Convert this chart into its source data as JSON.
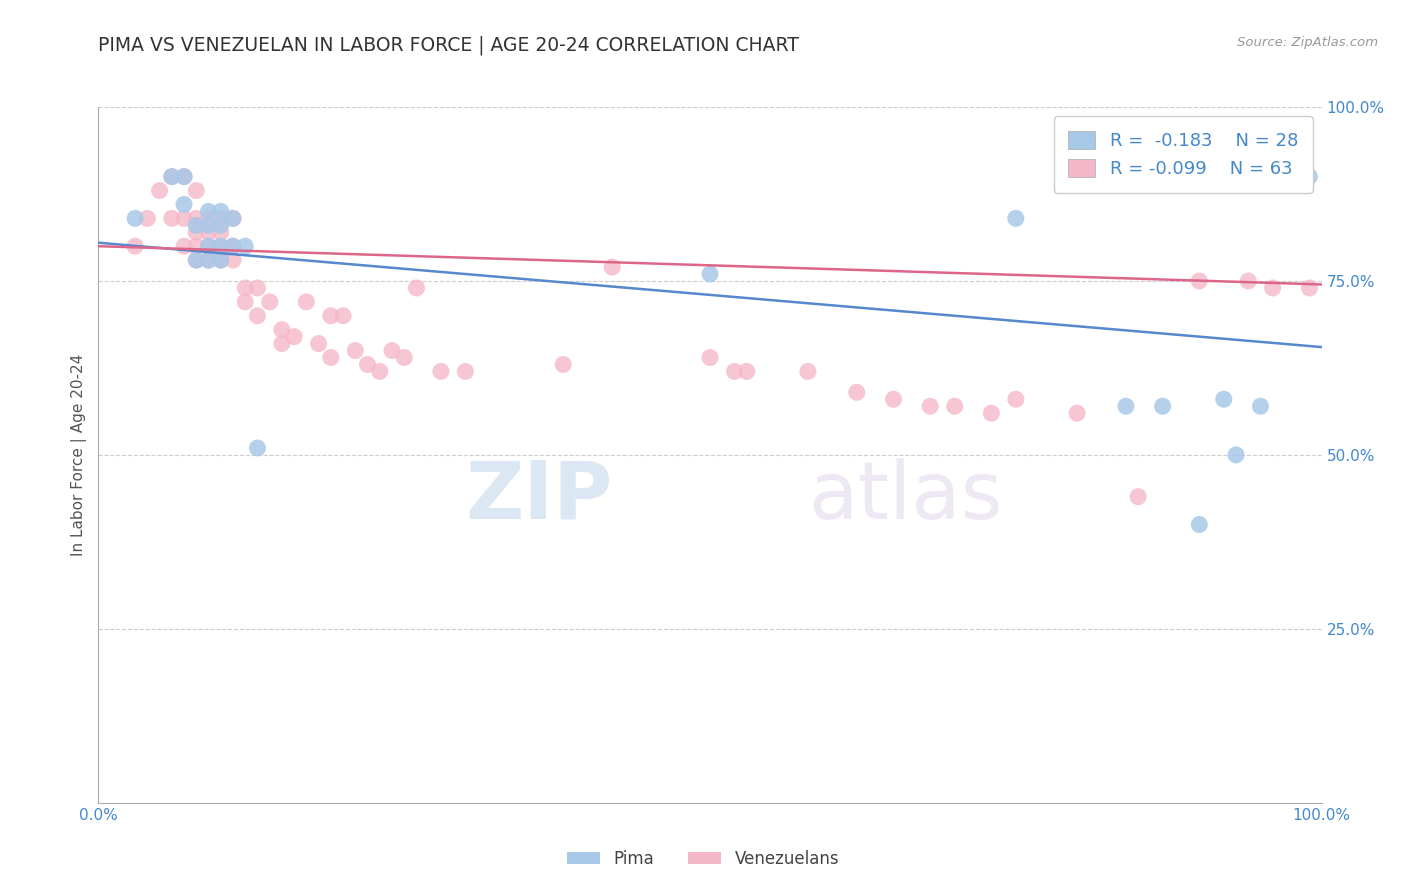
{
  "title": "PIMA VS VENEZUELAN IN LABOR FORCE | AGE 20-24 CORRELATION CHART",
  "source_text": "Source: ZipAtlas.com",
  "ylabel": "In Labor Force | Age 20-24",
  "xlim": [
    0,
    1.0
  ],
  "ylim": [
    0,
    1.0
  ],
  "xtick_labels": [
    "0.0%",
    "100.0%"
  ],
  "ytick_labels": [
    "25.0%",
    "50.0%",
    "75.0%",
    "100.0%"
  ],
  "ytick_positions": [
    0.25,
    0.5,
    0.75,
    1.0
  ],
  "watermark": "ZIPatlas",
  "legend_pima_R": "-0.183",
  "legend_pima_N": "28",
  "legend_venezuelan_R": "-0.099",
  "legend_venezuelan_N": "63",
  "pima_color": "#a8c8e8",
  "venezuelan_color": "#f5b8c8",
  "pima_line_color": "#5588cc",
  "venezuelan_line_color": "#dd6688",
  "title_color": "#333333",
  "axis_label_color": "#555555",
  "tick_label_color": "#4488cc",
  "grid_color": "#cccccc",
  "background_color": "#ffffff",
  "pima_x": [
    0.03,
    0.06,
    0.07,
    0.08,
    0.08,
    0.09,
    0.09,
    0.09,
    0.1,
    0.1,
    0.1,
    0.11,
    0.12,
    0.5,
    0.75,
    0.84,
    0.87,
    0.92,
    0.93,
    0.95,
    0.97,
    0.99,
    0.07,
    0.09,
    0.1,
    0.11,
    0.13,
    0.9
  ],
  "pima_y": [
    0.84,
    0.9,
    0.9,
    0.78,
    0.83,
    0.78,
    0.8,
    0.83,
    0.78,
    0.8,
    0.83,
    0.8,
    0.8,
    0.76,
    0.84,
    0.57,
    0.57,
    0.58,
    0.5,
    0.57,
    0.9,
    0.9,
    0.86,
    0.85,
    0.85,
    0.84,
    0.51,
    0.4
  ],
  "venezuelan_x": [
    0.03,
    0.04,
    0.05,
    0.06,
    0.06,
    0.07,
    0.07,
    0.07,
    0.08,
    0.08,
    0.08,
    0.08,
    0.08,
    0.09,
    0.09,
    0.09,
    0.09,
    0.1,
    0.1,
    0.1,
    0.1,
    0.11,
    0.11,
    0.11,
    0.12,
    0.12,
    0.13,
    0.13,
    0.14,
    0.15,
    0.15,
    0.16,
    0.17,
    0.18,
    0.19,
    0.19,
    0.2,
    0.21,
    0.22,
    0.23,
    0.24,
    0.25,
    0.26,
    0.28,
    0.3,
    0.38,
    0.42,
    0.5,
    0.52,
    0.53,
    0.58,
    0.62,
    0.65,
    0.68,
    0.7,
    0.73,
    0.75,
    0.8,
    0.85,
    0.9,
    0.94,
    0.96,
    0.99
  ],
  "venezuelan_y": [
    0.8,
    0.84,
    0.88,
    0.84,
    0.9,
    0.8,
    0.84,
    0.9,
    0.78,
    0.8,
    0.82,
    0.84,
    0.88,
    0.78,
    0.8,
    0.82,
    0.84,
    0.78,
    0.8,
    0.82,
    0.84,
    0.78,
    0.8,
    0.84,
    0.72,
    0.74,
    0.7,
    0.74,
    0.72,
    0.66,
    0.68,
    0.67,
    0.72,
    0.66,
    0.64,
    0.7,
    0.7,
    0.65,
    0.63,
    0.62,
    0.65,
    0.64,
    0.74,
    0.62,
    0.62,
    0.63,
    0.77,
    0.64,
    0.62,
    0.62,
    0.62,
    0.59,
    0.58,
    0.57,
    0.57,
    0.56,
    0.58,
    0.56,
    0.44,
    0.75,
    0.75,
    0.74,
    0.74
  ],
  "pima_trendline_x": [
    0.0,
    1.0
  ],
  "pima_trendline_y": [
    0.805,
    0.655
  ],
  "venezuelan_trendline_x": [
    0.0,
    1.0
  ],
  "venezuelan_trendline_y": [
    0.8,
    0.745
  ]
}
